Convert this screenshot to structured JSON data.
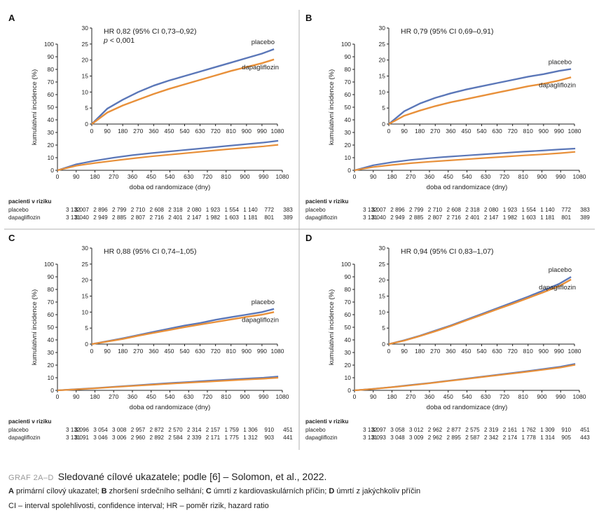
{
  "colors": {
    "placebo": "#5b77b8",
    "dapagliflozin": "#e8903a",
    "axis": "#222222",
    "divider": "#b0b0b0"
  },
  "chart_data": [
    {
      "type": "line",
      "panel": "A",
      "hr_text": "HR 0,82 (95% CI 0,73–0,92)",
      "p_text": "p < 0,001",
      "xlabel": "doba od randomizace (dny)",
      "ylabel": "kumulativní incidence (%)",
      "x_ticks": [
        0,
        90,
        180,
        270,
        360,
        450,
        540,
        630,
        720,
        810,
        900,
        990,
        1080
      ],
      "main_ylim": [
        0,
        100
      ],
      "main_yticks": [
        0,
        10,
        20,
        30,
        40,
        50,
        60,
        70,
        80,
        90,
        100
      ],
      "inset_ylim": [
        0,
        30
      ],
      "inset_yticks": [
        0,
        5,
        10,
        15,
        20,
        25,
        30
      ],
      "series": [
        {
          "name": "placebo",
          "label": "placebo",
          "x": [
            0,
            90,
            180,
            270,
            360,
            450,
            540,
            630,
            720,
            810,
            900,
            990,
            1060
          ],
          "values": [
            0,
            4.8,
            7.6,
            10.0,
            12.0,
            13.6,
            15.0,
            16.4,
            17.8,
            19.2,
            20.6,
            22.0,
            23.4
          ]
        },
        {
          "name": "dapagliflozin",
          "label": "dapagliflozin",
          "x": [
            0,
            90,
            180,
            270,
            360,
            450,
            540,
            630,
            720,
            810,
            900,
            990,
            1060
          ],
          "values": [
            0,
            3.6,
            5.8,
            7.6,
            9.4,
            11.0,
            12.4,
            13.8,
            15.2,
            16.6,
            17.8,
            19.0,
            20.2
          ]
        }
      ],
      "risk_table": {
        "header": "pacienti v riziku",
        "rows": [
          {
            "label": "placebo",
            "values": [
              "3 132",
              "3 007",
              "2 896",
              "2 799",
              "2 710",
              "2 608",
              "2 318",
              "2 080",
              "1 923",
              "1 554",
              "1 140",
              "772",
              "383"
            ]
          },
          {
            "label": "dapagliflozin",
            "values": [
              "3 131",
              "3 040",
              "2 949",
              "2 885",
              "2 807",
              "2 716",
              "2 401",
              "2 147",
              "1 982",
              "1 603",
              "1 181",
              "801",
              "389"
            ]
          }
        ]
      }
    },
    {
      "type": "line",
      "panel": "B",
      "hr_text": "HR 0,79 (95% CI 0,69–0,91)",
      "p_text": "",
      "xlabel": "doba od randomizace (dny)",
      "ylabel": "kumulativní incidence (%)",
      "x_ticks": [
        0,
        90,
        180,
        270,
        360,
        450,
        540,
        630,
        720,
        810,
        900,
        990,
        1080
      ],
      "main_ylim": [
        0,
        100
      ],
      "main_yticks": [
        0,
        10,
        20,
        30,
        40,
        50,
        60,
        70,
        80,
        90,
        100
      ],
      "inset_ylim": [
        0,
        30
      ],
      "inset_yticks": [
        0,
        5,
        10,
        15,
        20,
        25,
        30
      ],
      "series": [
        {
          "name": "placebo",
          "label": "placebo",
          "x": [
            0,
            90,
            180,
            270,
            360,
            450,
            540,
            630,
            720,
            810,
            900,
            990,
            1060
          ],
          "values": [
            0,
            4.0,
            6.4,
            8.2,
            9.6,
            10.8,
            11.8,
            12.8,
            13.8,
            14.8,
            15.6,
            16.6,
            17.2
          ]
        },
        {
          "name": "dapagliflozin",
          "label": "dapagliflozin",
          "x": [
            0,
            90,
            180,
            270,
            360,
            450,
            540,
            630,
            720,
            810,
            900,
            990,
            1060
          ],
          "values": [
            0,
            2.6,
            4.2,
            5.6,
            6.8,
            7.8,
            8.8,
            9.8,
            10.8,
            11.8,
            12.6,
            13.6,
            14.6
          ]
        }
      ],
      "risk_table": {
        "header": "pacienti v riziku",
        "rows": [
          {
            "label": "placebo",
            "values": [
              "3 132",
              "3 007",
              "2 896",
              "2 799",
              "2 710",
              "2 608",
              "2 318",
              "2 080",
              "1 923",
              "1 554",
              "1 140",
              "772",
              "383"
            ]
          },
          {
            "label": "dapagliflozin",
            "values": [
              "3 131",
              "3 040",
              "2 949",
              "2 885",
              "2 807",
              "2 716",
              "2 401",
              "2 147",
              "1 982",
              "1 603",
              "1 181",
              "801",
              "389"
            ]
          }
        ]
      }
    },
    {
      "type": "line",
      "panel": "C",
      "hr_text": "HR 0,88 (95% CI 0,74–1,05)",
      "p_text": "",
      "xlabel": "doba od randomizace (dny)",
      "ylabel": "kumulativní incidence (%)",
      "x_ticks": [
        0,
        90,
        180,
        270,
        360,
        450,
        540,
        630,
        720,
        810,
        900,
        990,
        1080
      ],
      "main_ylim": [
        0,
        100
      ],
      "main_yticks": [
        0,
        10,
        20,
        30,
        40,
        50,
        60,
        70,
        80,
        90,
        100
      ],
      "inset_ylim": [
        0,
        30
      ],
      "inset_yticks": [
        0,
        5,
        10,
        15,
        20,
        25,
        30
      ],
      "series": [
        {
          "name": "placebo",
          "label": "placebo",
          "x": [
            0,
            90,
            180,
            270,
            360,
            450,
            540,
            630,
            720,
            810,
            900,
            990,
            1060
          ],
          "values": [
            0,
            0.9,
            1.8,
            2.8,
            3.8,
            4.8,
            5.8,
            6.6,
            7.6,
            8.4,
            9.2,
            10.0,
            11.0
          ]
        },
        {
          "name": "dapagliflozin",
          "label": "dapagliflozin",
          "x": [
            0,
            90,
            180,
            270,
            360,
            450,
            540,
            630,
            720,
            810,
            900,
            990,
            1060
          ],
          "values": [
            0,
            0.8,
            1.6,
            2.6,
            3.5,
            4.4,
            5.3,
            6.1,
            6.9,
            7.7,
            8.5,
            9.2,
            10.0
          ]
        }
      ],
      "risk_table": {
        "header": "pacienti v riziku",
        "rows": [
          {
            "label": "placebo",
            "values": [
              "3 132",
              "3 096",
              "3 054",
              "3 008",
              "2 957",
              "2 872",
              "2 570",
              "2 314",
              "2 157",
              "1 759",
              "1 306",
              "910",
              "451"
            ]
          },
          {
            "label": "dapagliflozin",
            "values": [
              "3 131",
              "3 091",
              "3 046",
              "3 006",
              "2 960",
              "2 892",
              "2 584",
              "2 339",
              "2 171",
              "1 775",
              "1 312",
              "903",
              "441"
            ]
          }
        ]
      }
    },
    {
      "type": "line",
      "panel": "D",
      "hr_text": "HR 0,94 (95% CI 0,83–1,07)",
      "p_text": "",
      "xlabel": "doba od randomizace (dny)",
      "ylabel": "kumulativní incidence (%)",
      "x_ticks": [
        0,
        90,
        180,
        270,
        360,
        450,
        540,
        630,
        720,
        810,
        900,
        990,
        1080
      ],
      "main_ylim": [
        0,
        100
      ],
      "main_yticks": [
        0,
        10,
        20,
        30,
        40,
        50,
        60,
        70,
        80,
        90,
        100
      ],
      "inset_ylim": [
        0,
        30
      ],
      "inset_yticks": [
        0,
        5,
        10,
        15,
        20,
        25,
        30
      ],
      "series": [
        {
          "name": "placebo",
          "label": "placebo",
          "x": [
            0,
            90,
            180,
            270,
            360,
            450,
            540,
            630,
            720,
            810,
            900,
            990,
            1060
          ],
          "values": [
            0,
            1.2,
            2.6,
            4.2,
            5.8,
            7.6,
            9.4,
            11.2,
            13.0,
            14.8,
            16.8,
            18.8,
            21.0
          ]
        },
        {
          "name": "dapagliflozin",
          "label": "dapagliflozin",
          "x": [
            0,
            90,
            180,
            270,
            360,
            450,
            540,
            630,
            720,
            810,
            900,
            990,
            1060
          ],
          "values": [
            0,
            1.1,
            2.5,
            4.0,
            5.6,
            7.4,
            9.1,
            10.9,
            12.6,
            14.4,
            16.2,
            18.1,
            20.2
          ]
        }
      ],
      "risk_table": {
        "header": "pacienti v riziku",
        "rows": [
          {
            "label": "placebo",
            "values": [
              "3 132",
              "3 097",
              "3 058",
              "3 012",
              "2 962",
              "2 877",
              "2 575",
              "2 319",
              "2 161",
              "1 762",
              "1 309",
              "910",
              "451"
            ]
          },
          {
            "label": "dapagliflozin",
            "values": [
              "3 131",
              "3 093",
              "3 048",
              "3 009",
              "2 962",
              "2 895",
              "2 587",
              "2 342",
              "2 174",
              "1 778",
              "1 314",
              "905",
              "443"
            ]
          }
        ]
      }
    }
  ],
  "caption": {
    "tag": "GRAF 2A–D",
    "title": "Sledované cílové ukazatele; podle [6] – Solomon, et al., 2022.",
    "legend_parts": [
      {
        "key": "A",
        "text": " primární cílový ukazatel; "
      },
      {
        "key": "B",
        "text": " zhoršení srdečního selhání; "
      },
      {
        "key": "C",
        "text": " úmrtí z kardiovaskulárních příčin; "
      },
      {
        "key": "D",
        "text": " úmrtí z jakýchkoliv příčin"
      }
    ],
    "abbrev": "CI – interval spolehlivosti, confidence interval; HR – poměr rizik, hazard ratio"
  }
}
